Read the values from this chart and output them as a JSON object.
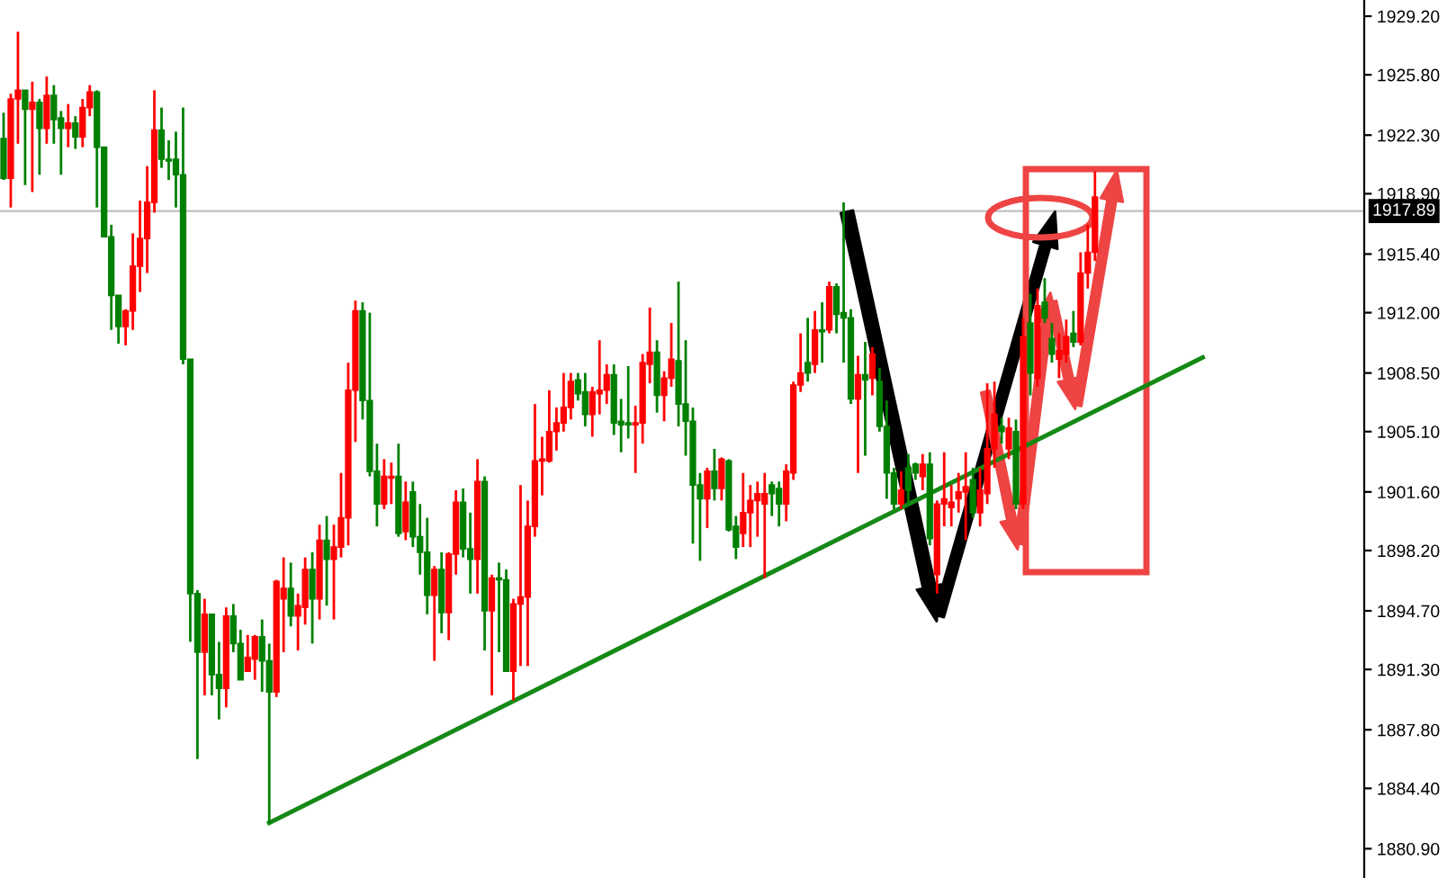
{
  "chart_data": {
    "type": "candlestick",
    "categories": [
      null,
      null,
      null,
      null,
      null,
      null,
      null,
      null,
      null,
      null,
      null,
      null,
      null,
      null,
      null,
      null,
      null,
      null,
      null,
      null,
      null,
      null,
      null,
      null,
      null,
      null,
      null,
      null,
      null,
      null,
      null,
      null,
      null,
      null,
      null,
      null,
      null,
      null,
      null,
      null,
      null,
      null,
      null,
      null,
      null,
      null,
      null,
      null,
      null,
      null,
      null,
      null,
      null,
      null,
      null,
      null,
      null,
      null,
      null,
      null,
      null,
      null,
      null,
      null,
      null,
      null,
      null,
      null,
      null,
      null,
      null,
      null,
      null,
      null,
      null,
      null,
      null,
      null,
      null,
      null,
      null,
      null,
      null,
      null,
      null,
      null,
      null,
      null,
      null,
      null,
      null,
      null,
      null,
      null,
      null,
      null,
      null,
      null,
      null,
      null,
      null,
      null,
      null,
      null,
      null,
      null,
      null,
      null,
      null,
      null,
      null,
      null,
      null,
      null,
      null,
      null,
      null,
      null,
      null,
      null,
      null,
      null,
      null,
      null,
      null,
      null,
      null,
      null,
      null,
      null,
      null,
      null,
      null,
      null,
      null,
      null,
      null,
      null,
      null,
      null,
      null,
      null,
      null,
      null,
      null,
      null,
      null,
      null,
      null,
      null,
      null,
      null,
      null,
      null,
      null,
      null,
      null,
      null,
      null,
      null,
      null,
      null,
      null,
      null,
      null,
      null,
      null,
      null,
      null,
      null,
      null,
      null,
      null,
      null,
      null,
      null,
      null,
      null,
      null,
      null,
      null,
      null,
      null,
      null,
      null,
      null,
      null,
      null,
      null,
      null
    ],
    "ohlc": [
      [
        1922.1,
        1923.6,
        1919.7,
        1919.8
      ],
      [
        1919.8,
        1924.7,
        1918.1,
        1924.4
      ],
      [
        1924.4,
        1928.3,
        1921.8,
        1924.9
      ],
      [
        1924.9,
        1924.9,
        1919.4,
        1923.8
      ],
      [
        1923.8,
        1925.4,
        1919.0,
        1924.2
      ],
      [
        1924.2,
        1924.4,
        1920.0,
        1922.7
      ],
      [
        1922.7,
        1925.7,
        1921.8,
        1924.6
      ],
      [
        1924.6,
        1925.2,
        1921.8,
        1923.2
      ],
      [
        1923.3,
        1923.7,
        1920.0,
        1922.7
      ],
      [
        1922.7,
        1924.1,
        1921.6,
        1923.0
      ],
      [
        1923.0,
        1923.4,
        1921.5,
        1922.2
      ],
      [
        1922.2,
        1924.4,
        1921.6,
        1923.9
      ],
      [
        1923.9,
        1925.2,
        1923.4,
        1924.8
      ],
      [
        1924.8,
        1924.9,
        1918.1,
        1921.6
      ],
      [
        1921.6,
        1921.6,
        1916.4,
        1916.4
      ],
      [
        1916.4,
        1917.1,
        1911.0,
        1913.0
      ],
      [
        1913.0,
        1913.0,
        1910.2,
        1911.2
      ],
      [
        1911.2,
        1912.2,
        1910.1,
        1912.1
      ],
      [
        1912.1,
        1916.6,
        1911.0,
        1914.7
      ],
      [
        1914.7,
        1918.5,
        1913.2,
        1916.3
      ],
      [
        1916.3,
        1920.5,
        1914.3,
        1918.4
      ],
      [
        1918.4,
        1924.9,
        1917.8,
        1922.6
      ],
      [
        1922.6,
        1923.9,
        1920.4,
        1920.9
      ],
      [
        1920.9,
        1922.0,
        1919.7,
        1920.8
      ],
      [
        1920.9,
        1922.5,
        1918.1,
        1920.0
      ],
      [
        1920.0,
        1923.9,
        1909.0,
        1909.3
      ],
      [
        1909.3,
        1909.3,
        1892.9,
        1895.7
      ],
      [
        1895.7,
        1895.9,
        1886.1,
        1892.3
      ],
      [
        1892.3,
        1895.4,
        1889.8,
        1894.5
      ],
      [
        1894.5,
        1894.5,
        1889.8,
        1891.0
      ],
      [
        1891.0,
        1892.9,
        1888.4,
        1890.2
      ],
      [
        1890.2,
        1894.9,
        1889.1,
        1894.4
      ],
      [
        1894.4,
        1895.1,
        1892.3,
        1892.8
      ],
      [
        1892.8,
        1893.6,
        1890.7,
        1890.7
      ],
      [
        1891.2,
        1893.3,
        1891.2,
        1892.0
      ],
      [
        1891.9,
        1893.3,
        1890.7,
        1893.2
      ],
      [
        1893.2,
        1894.2,
        1890.0,
        1891.8
      ],
      [
        1891.8,
        1892.8,
        1882.4,
        1890.0
      ],
      [
        1890.0,
        1896.5,
        1889.7,
        1896.4
      ],
      [
        1895.4,
        1897.8,
        1892.3,
        1896.0
      ],
      [
        1896.0,
        1897.5,
        1893.8,
        1894.4
      ],
      [
        1894.4,
        1895.7,
        1892.4,
        1895.0
      ],
      [
        1894.9,
        1897.8,
        1893.9,
        1897.1
      ],
      [
        1897.1,
        1898.1,
        1892.8,
        1895.4
      ],
      [
        1895.4,
        1899.7,
        1894.2,
        1898.8
      ],
      [
        1898.8,
        1900.2,
        1895.0,
        1897.7
      ],
      [
        1897.7,
        1899.7,
        1894.2,
        1898.4
      ],
      [
        1898.4,
        1902.7,
        1897.8,
        1900.1
      ],
      [
        1900.1,
        1909.1,
        1898.5,
        1907.5
      ],
      [
        1907.5,
        1912.7,
        1904.5,
        1912.1
      ],
      [
        1912.1,
        1912.6,
        1905.8,
        1906.9
      ],
      [
        1906.9,
        1912.0,
        1902.5,
        1902.8
      ],
      [
        1902.8,
        1904.4,
        1899.6,
        1900.9
      ],
      [
        1900.9,
        1903.5,
        1900.6,
        1902.5
      ],
      [
        1902.4,
        1903.3,
        1900.9,
        1902.5
      ],
      [
        1902.5,
        1904.4,
        1899.0,
        1899.2
      ],
      [
        1899.3,
        1902.2,
        1898.8,
        1901.0
      ],
      [
        1901.6,
        1902.2,
        1898.4,
        1899.0
      ],
      [
        1899.0,
        1900.9,
        1896.8,
        1898.1
      ],
      [
        1898.1,
        1900.1,
        1894.5,
        1895.6
      ],
      [
        1895.6,
        1897.3,
        1891.8,
        1897.1
      ],
      [
        1897.1,
        1898.1,
        1893.4,
        1894.6
      ],
      [
        1894.6,
        1898.1,
        1893.0,
        1898.0
      ],
      [
        1898.0,
        1901.7,
        1896.8,
        1901.0
      ],
      [
        1901.0,
        1901.8,
        1897.8,
        1898.3
      ],
      [
        1898.3,
        1900.4,
        1895.7,
        1897.7
      ],
      [
        1897.7,
        1903.5,
        1895.7,
        1902.2
      ],
      [
        1902.2,
        1902.5,
        1892.4,
        1894.7
      ],
      [
        1894.7,
        1896.8,
        1889.8,
        1896.6
      ],
      [
        1896.6,
        1897.5,
        1892.3,
        1896.5
      ],
      [
        1896.5,
        1897.1,
        1891.2,
        1891.2
      ],
      [
        1891.2,
        1895.4,
        1889.5,
        1895.1
      ],
      [
        1895.1,
        1902.0,
        1891.5,
        1895.5
      ],
      [
        1895.5,
        1901.1,
        1891.5,
        1899.6
      ],
      [
        1899.6,
        1906.7,
        1899.0,
        1903.4
      ],
      [
        1903.4,
        1904.8,
        1901.4,
        1903.5
      ],
      [
        1903.4,
        1907.5,
        1903.3,
        1905.1
      ],
      [
        1905.1,
        1906.5,
        1904.0,
        1905.6
      ],
      [
        1905.6,
        1908.5,
        1905.1,
        1906.5
      ],
      [
        1906.5,
        1908.5,
        1905.8,
        1908.0
      ],
      [
        1908.1,
        1908.5,
        1906.9,
        1907.3
      ],
      [
        1907.4,
        1908.5,
        1905.4,
        1906.1
      ],
      [
        1906.1,
        1907.7,
        1904.8,
        1907.4
      ],
      [
        1907.3,
        1910.4,
        1906.1,
        1907.5
      ],
      [
        1907.5,
        1909.0,
        1906.7,
        1908.4
      ],
      [
        1908.4,
        1909.0,
        1904.9,
        1905.6
      ],
      [
        1905.7,
        1907.0,
        1903.9,
        1905.5
      ],
      [
        1905.6,
        1908.9,
        1904.7,
        1905.5
      ],
      [
        1905.5,
        1906.6,
        1902.7,
        1905.6
      ],
      [
        1905.6,
        1909.6,
        1904.4,
        1909.1
      ],
      [
        1909.0,
        1912.3,
        1907.9,
        1909.7
      ],
      [
        1909.7,
        1910.4,
        1906.2,
        1907.2
      ],
      [
        1907.2,
        1908.6,
        1905.7,
        1908.2
      ],
      [
        1908.2,
        1911.4,
        1907.7,
        1909.3
      ],
      [
        1909.2,
        1913.8,
        1905.4,
        1906.7
      ],
      [
        1906.7,
        1910.4,
        1903.7,
        1905.7
      ],
      [
        1905.7,
        1906.5,
        1898.6,
        1902.0
      ],
      [
        1902.0,
        1902.7,
        1897.6,
        1901.2
      ],
      [
        1901.2,
        1903.0,
        1899.5,
        1902.8
      ],
      [
        1902.8,
        1904.1,
        1901.1,
        1901.8
      ],
      [
        1901.8,
        1903.6,
        1901.1,
        1903.5
      ],
      [
        1903.4,
        1903.5,
        1899.3,
        1899.4
      ],
      [
        1899.6,
        1900.2,
        1897.7,
        1898.4
      ],
      [
        1899.2,
        1902.7,
        1898.4,
        1900.4
      ],
      [
        1900.4,
        1902.0,
        1898.4,
        1901.1
      ],
      [
        1901.1,
        1902.2,
        1899.0,
        1901.5
      ],
      [
        1900.9,
        1902.7,
        1896.6,
        1901.5
      ],
      [
        1902.0,
        1902.2,
        1900.2,
        1901.5
      ],
      [
        1901.8,
        1902.2,
        1899.6,
        1900.9
      ],
      [
        1900.9,
        1903.2,
        1899.9,
        1902.8
      ],
      [
        1902.7,
        1908.0,
        1902.3,
        1907.8
      ],
      [
        1907.8,
        1910.8,
        1907.4,
        1908.5
      ],
      [
        1909.1,
        1911.7,
        1908.0,
        1908.5
      ],
      [
        1909.0,
        1912.1,
        1908.5,
        1911.0
      ],
      [
        1911.0,
        1912.6,
        1909.1,
        1910.9
      ],
      [
        1911.0,
        1913.8,
        1910.8,
        1913.5
      ],
      [
        1913.5,
        1913.7,
        1910.8,
        1911.9
      ],
      [
        1912.0,
        1918.4,
        1909.1,
        1911.7
      ],
      [
        1911.7,
        1912.2,
        1906.7,
        1907.0
      ],
      [
        1907.0,
        1909.5,
        1902.7,
        1908.4
      ],
      [
        1908.4,
        1910.3,
        1903.7,
        1908.1
      ],
      [
        1908.2,
        1910.0,
        1907.2,
        1909.6
      ],
      [
        1908.0,
        1908.8,
        1905.1,
        1905.4
      ],
      [
        1905.4,
        1906.9,
        1901.2,
        1902.7
      ],
      [
        1902.7,
        1903.0,
        1900.6,
        1900.9
      ],
      [
        1900.9,
        1902.8,
        1900.6,
        1901.7
      ],
      [
        1903.0,
        1903.8,
        1900.9,
        1901.7
      ],
      [
        1903.2,
        1903.3,
        1902.3,
        1902.7
      ],
      [
        1902.5,
        1903.8,
        1901.7,
        1903.2
      ],
      [
        1903.2,
        1903.9,
        1898.5,
        1898.9
      ],
      [
        1896.8,
        1901.1,
        1895.7,
        1900.9
      ],
      [
        1900.9,
        1903.9,
        1899.6,
        1901.2
      ],
      [
        1900.7,
        1902.0,
        1899.6,
        1901.0
      ],
      [
        1901.2,
        1902.7,
        1900.4,
        1901.6
      ],
      [
        1901.6,
        1903.9,
        1898.8,
        1901.9
      ],
      [
        1902.3,
        1903.0,
        1900.1,
        1900.4
      ],
      [
        1900.4,
        1903.0,
        1899.6,
        1901.7
      ],
      [
        1901.5,
        1907.9,
        1900.9,
        1904.1
      ],
      [
        1904.1,
        1908.0,
        1903.0,
        1906.1
      ],
      [
        1905.4,
        1905.9,
        1904.4,
        1905.1
      ],
      [
        1904.1,
        1905.9,
        1903.5,
        1905.3
      ],
      [
        1905.1,
        1905.8,
        1900.6,
        1900.9
      ],
      [
        1900.9,
        1911.7,
        1900.6,
        1910.6
      ],
      [
        1911.4,
        1913.1,
        1907.2,
        1908.5
      ],
      [
        1908.2,
        1913.4,
        1907.7,
        1912.4
      ],
      [
        1912.6,
        1914.0,
        1911.4,
        1911.7
      ],
      [
        1910.5,
        1911.4,
        1909.1,
        1909.6
      ],
      [
        1909.3,
        1910.8,
        1908.2,
        1909.8
      ],
      [
        1909.6,
        1911.6,
        1909.1,
        1910.6
      ],
      [
        1910.8,
        1912.1,
        1910.0,
        1910.3
      ],
      [
        1910.3,
        1915.5,
        1910.1,
        1914.3
      ],
      [
        1914.3,
        1917.1,
        1913.4,
        1915.5
      ],
      [
        1915.5,
        1920.2,
        1915.0,
        1918.7
      ],
      null,
      null,
      null,
      null,
      null,
      null,
      null,
      null,
      null,
      null,
      null,
      null,
      null,
      null,
      null,
      null,
      null,
      null,
      null,
      null,
      null,
      null,
      null,
      null,
      null,
      null,
      null,
      null,
      null,
      null,
      null,
      null,
      null,
      null,
      null,
      null,
      null
    ],
    "series": [
      {
        "type": "line",
        "values": [
          null,
          null,
          null,
          null,
          null,
          null,
          null,
          null,
          null,
          null,
          null,
          null,
          null,
          null,
          null,
          null,
          null,
          null,
          null,
          null,
          null,
          null,
          null,
          null,
          null,
          null,
          null,
          null,
          null,
          null,
          null,
          null,
          null,
          null,
          null,
          null,
          null,
          1882.4,
          null,
          null,
          null,
          null,
          null,
          null,
          null,
          null,
          null,
          null,
          null,
          null,
          null,
          null,
          null,
          null,
          null,
          null,
          null,
          null,
          null,
          null,
          null,
          null,
          null,
          null,
          null,
          null,
          null,
          null,
          null,
          null,
          null,
          null,
          null,
          null,
          null,
          null,
          null,
          null,
          null,
          null,
          null,
          null,
          null,
          null,
          null,
          null,
          null,
          null,
          null,
          null,
          null,
          null,
          null,
          null,
          null,
          null,
          null,
          null,
          null,
          null,
          null,
          null,
          null,
          null,
          null,
          null,
          null,
          null,
          null,
          null,
          null,
          null,
          null,
          null,
          null,
          null,
          null,
          null,
          null,
          null,
          null,
          null,
          null,
          null,
          null,
          null,
          null,
          null,
          null,
          null,
          null,
          null,
          null,
          null,
          null,
          null,
          null,
          null,
          null,
          null,
          null,
          null,
          null,
          null,
          null,
          null,
          null,
          null,
          null,
          null,
          null,
          null,
          null,
          null,
          null,
          null,
          null,
          null,
          null,
          null,
          null,
          null,
          null,
          null,
          null,
          null,
          null,
          1909.4,
          null,
          null,
          null,
          null,
          null,
          null,
          null,
          null,
          null,
          null,
          null,
          null,
          null,
          null,
          null,
          null,
          null,
          null,
          null,
          null,
          null,
          null
        ],
        "color": "#148a14"
      }
    ],
    "ylim": [
      1879.2,
      1930.14
    ],
    "yticks": [
      {
        "value": 1929.2,
        "label": "1929.20"
      },
      {
        "value": 1925.8,
        "label": "1925.80"
      },
      {
        "value": 1922.3,
        "label": "1922.30"
      },
      {
        "value": 1918.9,
        "label": "1918.90"
      },
      {
        "value": 1915.4,
        "label": "1915.40"
      },
      {
        "value": 1912.0,
        "label": "1912.00"
      },
      {
        "value": 1908.5,
        "label": "1908.50"
      },
      {
        "value": 1905.1,
        "label": "1905.10"
      },
      {
        "value": 1901.6,
        "label": "1901.60"
      },
      {
        "value": 1898.2,
        "label": "1898.20"
      },
      {
        "value": 1894.7,
        "label": "1894.70"
      },
      {
        "value": 1891.3,
        "label": "1891.30"
      },
      {
        "value": 1887.8,
        "label": "1887.80"
      },
      {
        "value": 1884.4,
        "label": "1884.40"
      },
      {
        "value": 1880.9,
        "label": "1880.90"
      }
    ],
    "ref_lines": [
      {
        "axis": "y",
        "value": 1917.89,
        "label": "1917.89",
        "color": "#c0c0c0"
      }
    ],
    "tick_labels": "y",
    "grid": false,
    "legend": false
  }
}
